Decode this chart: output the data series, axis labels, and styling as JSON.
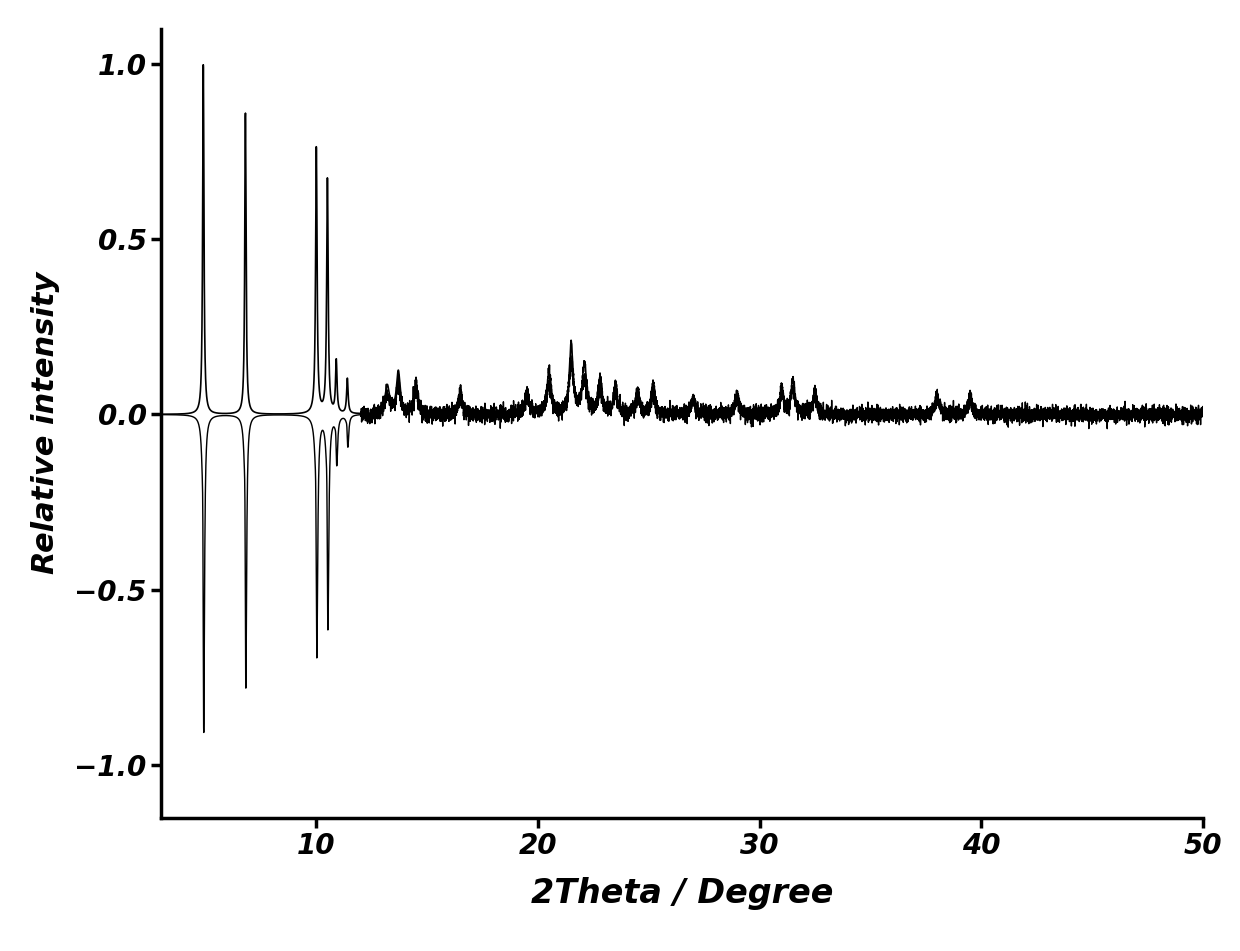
{
  "xlabel": "2Theta / Degree",
  "ylabel": "Relative intensity",
  "xlim": [
    3,
    50
  ],
  "ylim": [
    -1.15,
    1.1
  ],
  "yticks": [
    -1.0,
    -0.5,
    0.0,
    0.5,
    1.0
  ],
  "xticks": [
    10,
    20,
    30,
    40,
    50
  ],
  "line_color": "#000000",
  "background_color": "#ffffff",
  "xlabel_fontsize": 24,
  "ylabel_fontsize": 22,
  "tick_fontsize": 20,
  "linewidth": 1.2,
  "peaks_pos": [
    4.9,
    6.8,
    10.0,
    10.5,
    10.9,
    11.4
  ],
  "peaks_width": [
    0.035,
    0.035,
    0.04,
    0.04,
    0.04,
    0.04
  ],
  "peaks_height_pos": [
    1.0,
    0.86,
    0.76,
    0.67,
    0.15,
    0.1
  ],
  "peaks_height_neg": [
    -1.0,
    -0.86,
    -0.76,
    -0.67,
    -0.15,
    -0.1
  ],
  "extra_peaks_pos": [
    13.2,
    13.7,
    14.5,
    16.5,
    19.5,
    20.5,
    21.5,
    22.1,
    22.8,
    23.5,
    24.5,
    25.2,
    27.0,
    29.0,
    31.0,
    31.5,
    32.5,
    38.0,
    39.5
  ],
  "extra_peaks_width": [
    0.12,
    0.1,
    0.1,
    0.1,
    0.1,
    0.12,
    0.1,
    0.12,
    0.1,
    0.1,
    0.1,
    0.1,
    0.1,
    0.1,
    0.1,
    0.1,
    0.1,
    0.1,
    0.1
  ],
  "extra_peaks_height": [
    0.08,
    0.12,
    0.09,
    0.07,
    0.07,
    0.12,
    0.2,
    0.14,
    0.1,
    0.08,
    0.07,
    0.09,
    0.05,
    0.06,
    0.08,
    0.1,
    0.07,
    0.06,
    0.06
  ]
}
